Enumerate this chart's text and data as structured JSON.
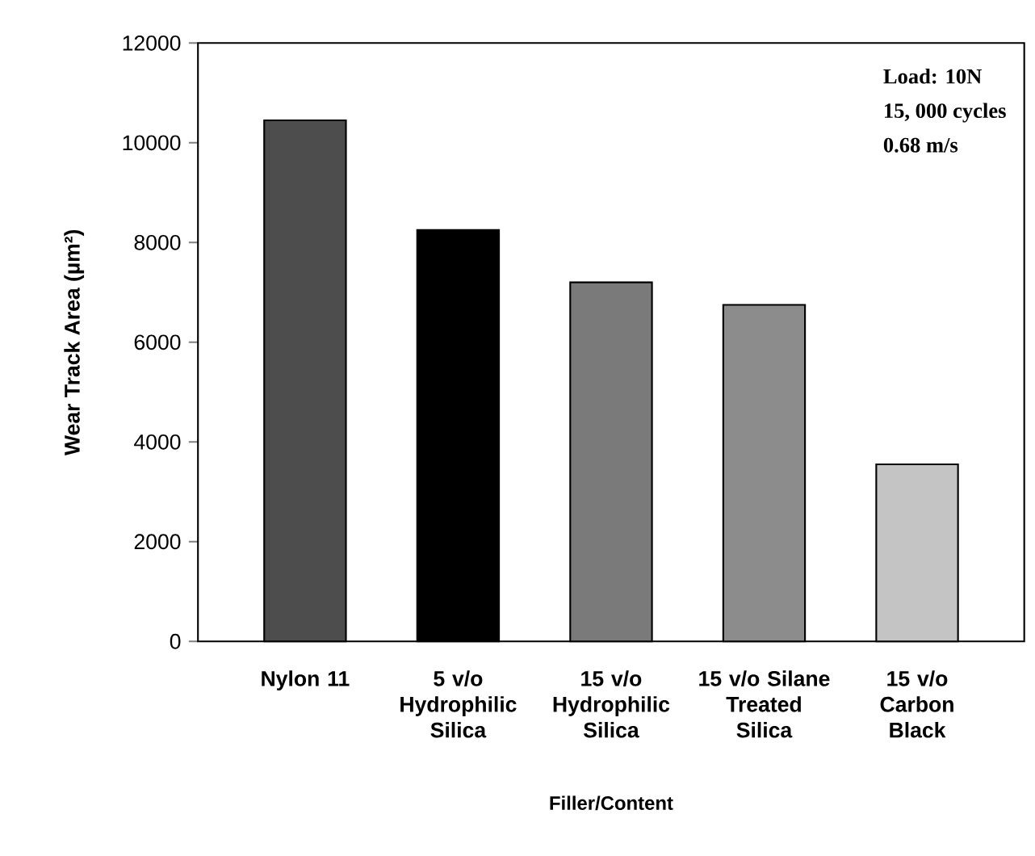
{
  "chart_data": {
    "type": "bar",
    "xlabel": "Filler/Content",
    "ylabel": "Wear Track Area (µm²)",
    "categories": [
      "Nylon 11",
      "5 v/o Hydrophilic Silica",
      "15 v/o Hydrophilic Silica",
      "15 v/o Silane Treated Silica",
      "15 v/o Carbon Black"
    ],
    "values": [
      10450,
      8250,
      7200,
      6750,
      3550
    ],
    "colors": [
      "#4d4d4d",
      "#000000",
      "#7a7a7a",
      "#8c8c8c",
      "#c4c4c4"
    ],
    "ylim": [
      0,
      12000
    ],
    "yticks": [
      0,
      2000,
      4000,
      6000,
      8000,
      10000,
      12000
    ],
    "annotations": [
      "Load: 10N",
      "15, 000 cycles",
      "0.68 m/s"
    ]
  }
}
